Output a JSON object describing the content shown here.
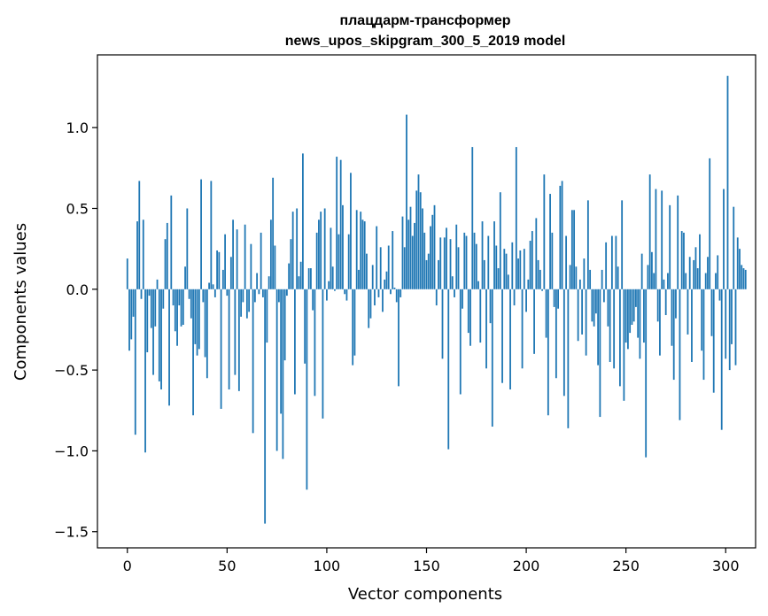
{
  "chart_data": {
    "type": "bar",
    "title": "плацдарм-трансформер",
    "subtitle": "news_upos_skipgram_300_5_2019 model",
    "xlabel": "Vector components",
    "ylabel": "Components values",
    "xlim": [
      -15,
      315
    ],
    "ylim": [
      -1.6,
      1.45
    ],
    "xticks": [
      0,
      50,
      100,
      150,
      200,
      250,
      300
    ],
    "yticks": [
      -1.5,
      -1.0,
      -0.5,
      0.0,
      0.5,
      1.0
    ],
    "ytick_labels": [
      "−1.5",
      "−1.0",
      "−0.5",
      "0.0",
      "0.5",
      "1.0"
    ],
    "grid": false,
    "bar_color": "#1f77b4",
    "values": [
      0.19,
      -0.38,
      -0.31,
      -0.17,
      -0.9,
      0.42,
      0.67,
      -0.06,
      0.43,
      -1.01,
      -0.39,
      -0.04,
      -0.24,
      -0.53,
      -0.23,
      0.06,
      -0.57,
      -0.62,
      -0.12,
      0.31,
      0.41,
      -0.72,
      0.58,
      -0.1,
      -0.26,
      -0.35,
      -0.1,
      -0.23,
      -0.22,
      0.14,
      0.5,
      -0.06,
      -0.18,
      -0.78,
      -0.34,
      -0.41,
      -0.37,
      0.68,
      -0.08,
      -0.42,
      -0.55,
      0.04,
      0.67,
      0.03,
      -0.05,
      0.24,
      0.23,
      -0.74,
      0.12,
      0.34,
      -0.04,
      -0.62,
      0.2,
      0.43,
      -0.53,
      0.37,
      -0.63,
      -0.17,
      -0.08,
      0.4,
      -0.18,
      -0.14,
      0.28,
      -0.89,
      -0.08,
      0.1,
      -0.03,
      0.35,
      -0.05,
      -1.45,
      -0.33,
      0.08,
      0.43,
      0.69,
      0.27,
      -1.0,
      -0.08,
      -0.77,
      -1.05,
      -0.44,
      -0.04,
      0.16,
      0.31,
      0.48,
      -0.65,
      0.5,
      0.08,
      0.17,
      0.84,
      -0.46,
      -1.24,
      0.13,
      0.13,
      -0.13,
      -0.66,
      0.35,
      0.43,
      0.48,
      -0.8,
      0.5,
      -0.07,
      0.05,
      0.38,
      0.14,
      -0.01,
      0.82,
      0.34,
      0.8,
      0.52,
      -0.03,
      -0.07,
      0.34,
      0.72,
      -0.47,
      -0.41,
      0.49,
      0.12,
      0.48,
      0.43,
      0.42,
      0.22,
      -0.24,
      -0.18,
      0.15,
      -0.1,
      0.39,
      -0.05,
      0.26,
      -0.14,
      0.06,
      0.11,
      0.27,
      -0.03,
      0.36,
      0.01,
      -0.08,
      -0.6,
      -0.05,
      0.45,
      0.26,
      1.08,
      0.43,
      0.51,
      0.33,
      0.41,
      0.61,
      0.71,
      0.6,
      0.5,
      0.35,
      0.18,
      0.22,
      0.39,
      0.46,
      0.52,
      -0.1,
      0.18,
      0.32,
      -0.43,
      0.32,
      0.38,
      -0.99,
      0.31,
      0.08,
      -0.05,
      0.4,
      0.26,
      -0.65,
      -0.12,
      0.35,
      0.33,
      -0.27,
      -0.35,
      0.88,
      0.35,
      0.28,
      0.05,
      -0.33,
      0.42,
      0.18,
      -0.49,
      0.33,
      -0.21,
      -0.85,
      0.42,
      0.27,
      0.13,
      0.6,
      -0.58,
      0.25,
      0.22,
      0.09,
      -0.62,
      0.29,
      -0.1,
      0.88,
      0.19,
      0.24,
      -0.49,
      0.25,
      -0.14,
      0.06,
      0.3,
      0.36,
      -0.4,
      0.44,
      0.18,
      0.12,
      -0.01,
      0.71,
      -0.3,
      -0.78,
      0.59,
      0.35,
      -0.11,
      -0.55,
      -0.12,
      0.64,
      0.67,
      -0.66,
      0.33,
      -0.86,
      0.15,
      0.49,
      0.49,
      0.14,
      -0.32,
      0.06,
      -0.28,
      0.19,
      -0.41,
      0.55,
      0.12,
      -0.2,
      -0.23,
      -0.15,
      -0.47,
      -0.79,
      0.12,
      -0.08,
      0.29,
      -0.23,
      -0.45,
      0.33,
      -0.49,
      0.33,
      0.14,
      -0.6,
      0.55,
      -0.69,
      -0.33,
      -0.37,
      -0.27,
      -0.22,
      -0.2,
      -0.11,
      -0.3,
      -0.43,
      0.22,
      -0.33,
      -1.04,
      0.15,
      0.71,
      0.23,
      0.1,
      0.62,
      -0.2,
      -0.41,
      0.61,
      0.06,
      -0.16,
      0.1,
      0.52,
      -0.35,
      -0.56,
      -0.18,
      0.58,
      -0.81,
      0.36,
      0.35,
      0.1,
      -0.28,
      0.2,
      -0.45,
      0.18,
      0.26,
      0.13,
      0.34,
      -0.38,
      -0.56,
      0.1,
      0.2,
      0.81,
      -0.29,
      -0.64,
      0.1,
      0.21,
      -0.07,
      -0.87,
      0.62,
      -0.43,
      1.32,
      -0.5,
      -0.34,
      0.51,
      -0.47,
      0.32,
      0.25,
      0.15,
      0.13,
      0.12
    ]
  }
}
